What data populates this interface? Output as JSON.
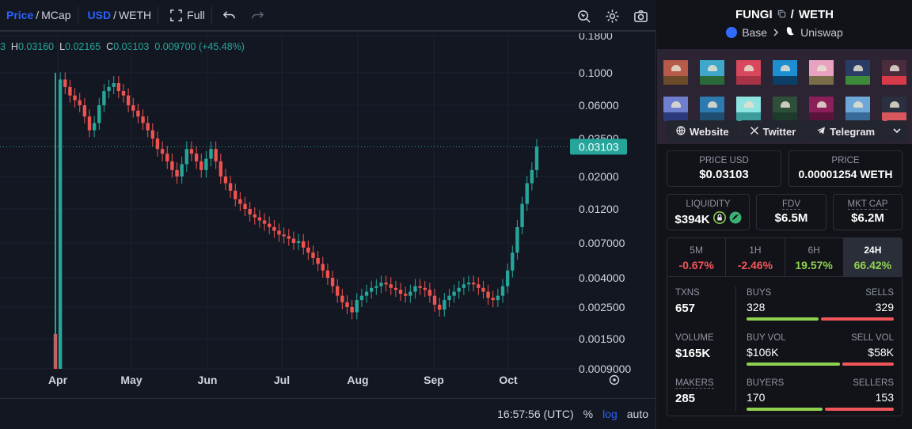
{
  "toolbar": {
    "price_label": "Price",
    "sep1": "/",
    "mcap_label": "MCap",
    "usd_label": "USD",
    "sep2": "/",
    "weth_label": "WETH",
    "full_label": "Full"
  },
  "ohlc": {
    "o_partial": "3",
    "h_key": "H",
    "h_val": "0.03160",
    "l_key": "L",
    "l_val": "0.02165",
    "c_key": "C",
    "c_val": "0.03103",
    "change": "0.009700 (+45.48%)"
  },
  "chart_data": {
    "type": "candlestick",
    "scale": "log",
    "y_ticks": [
      "0.1800",
      "0.1000",
      "0.06000",
      "0.03500",
      "0.02000",
      "0.01200",
      "0.007000",
      "0.004000",
      "0.002500",
      "0.001500",
      "0.0009000"
    ],
    "x_ticks": [
      "Apr",
      "May",
      "Jun",
      "Jul",
      "Aug",
      "Sep",
      "Oct"
    ],
    "last_price_label": "0.03103",
    "last_price": 0.03103,
    "series": [
      {
        "values": [
          0.0009,
          0.09,
          0.08,
          0.07,
          0.065,
          0.06,
          0.05,
          0.04,
          0.045,
          0.06,
          0.075,
          0.08,
          0.085,
          0.075,
          0.07,
          0.06,
          0.055,
          0.05,
          0.045,
          0.04,
          0.035,
          0.03,
          0.028,
          0.025,
          0.022,
          0.02,
          0.024,
          0.03,
          0.028,
          0.025,
          0.022,
          0.026,
          0.03,
          0.025,
          0.02,
          0.018,
          0.016,
          0.014,
          0.013,
          0.012,
          0.011,
          0.0105,
          0.01,
          0.0095,
          0.009,
          0.0085,
          0.008,
          0.0078,
          0.0075,
          0.007,
          0.0072,
          0.0065,
          0.006,
          0.0055,
          0.005,
          0.0045,
          0.004,
          0.0035,
          0.003,
          0.0027,
          0.0025,
          0.0023,
          0.0028,
          0.003,
          0.0032,
          0.0034,
          0.0035,
          0.0037,
          0.0036,
          0.0034,
          0.0033,
          0.0031,
          0.003,
          0.0032,
          0.0035,
          0.0034,
          0.0033,
          0.003,
          0.0026,
          0.0024,
          0.0028,
          0.003,
          0.0032,
          0.0034,
          0.0036,
          0.0037,
          0.0036,
          0.0034,
          0.0032,
          0.0029,
          0.0028,
          0.003,
          0.0035,
          0.0045,
          0.006,
          0.009,
          0.013,
          0.018,
          0.022,
          0.031
        ]
      }
    ]
  },
  "bottom_bar": {
    "time": "16:57:56 (UTC)",
    "percent": "%",
    "log": "log",
    "auto": "auto"
  },
  "pair": {
    "base": "FUNGI",
    "sep": "/",
    "quote": "WETH",
    "chain": "Base",
    "dex": "Uniswap"
  },
  "links": {
    "website": "Website",
    "twitter": "Twitter",
    "telegram": "Telegram"
  },
  "prices": {
    "usd_label": "PRICE USD",
    "usd_value": "$0.03103",
    "native_label": "PRICE",
    "native_value": "0.00001254 WETH"
  },
  "metrics": {
    "liquidity_label": "LIQUIDITY",
    "liquidity_value": "$394K",
    "fdv_label": "FDV",
    "fdv_value": "$6.5M",
    "mcap_label": "MKT CAP",
    "mcap_value": "$6.2M"
  },
  "timeframes": [
    {
      "label": "5M",
      "value": "-0.67%"
    },
    {
      "label": "1H",
      "value": "-2.46%"
    },
    {
      "label": "6H",
      "value": "19.57%"
    },
    {
      "label": "24H",
      "value": "66.42%"
    }
  ],
  "stats": {
    "txns_label": "TXNS",
    "txns_value": "657",
    "volume_label": "VOLUME",
    "volume_value": "$165K",
    "makers_label": "MAKERS",
    "makers_value": "285",
    "buys_label": "BUYS",
    "buys_value": "328",
    "sells_label": "SELLS",
    "sells_value": "329",
    "buyvol_label": "BUY VOL",
    "buyvol_value": "$106K",
    "sellvol_label": "SELL VOL",
    "sellvol_value": "$58K",
    "buyers_label": "BUYERS",
    "buyers_value": "170",
    "sellers_label": "SELLERS",
    "sellers_value": "153",
    "buy_sell_ratio": 0.499,
    "buyvol_ratio": 0.646,
    "buyers_ratio": 0.526
  },
  "colors": {
    "up": "#26a69a",
    "down": "#ef5350",
    "accent": "#2962ff",
    "positive": "#8fd14f",
    "negative": "#f2555a"
  }
}
